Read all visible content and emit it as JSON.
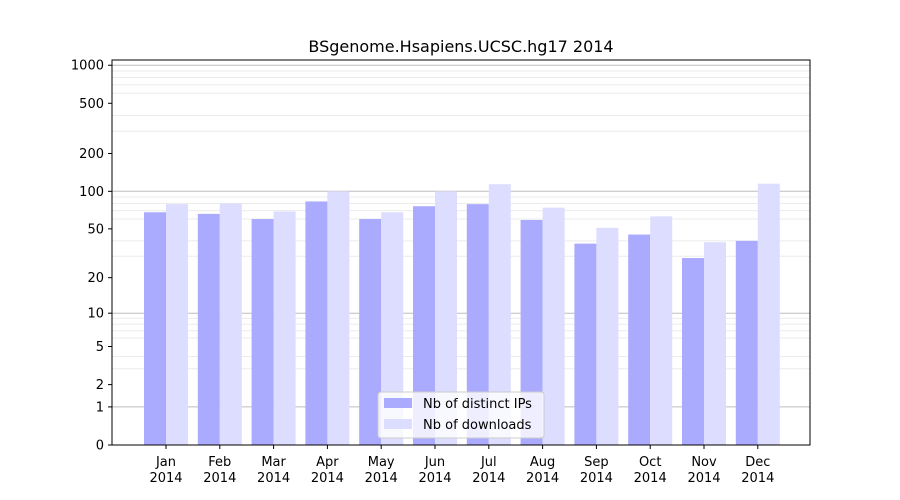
{
  "chart_data": {
    "type": "bar",
    "title": "BSgenome.Hsapiens.UCSC.hg17 2014",
    "xlabel": "",
    "ylabel": "",
    "yscale": "log(1+y)",
    "ylim": [
      0,
      1100
    ],
    "yticks": [
      0,
      1,
      2,
      5,
      10,
      20,
      50,
      100,
      200,
      500,
      1000
    ],
    "grid": true,
    "legend_position": "bottom-center",
    "categories": [
      [
        "Jan",
        "2014"
      ],
      [
        "Feb",
        "2014"
      ],
      [
        "Mar",
        "2014"
      ],
      [
        "Apr",
        "2014"
      ],
      [
        "May",
        "2014"
      ],
      [
        "Jun",
        "2014"
      ],
      [
        "Jul",
        "2014"
      ],
      [
        "Aug",
        "2014"
      ],
      [
        "Sep",
        "2014"
      ],
      [
        "Oct",
        "2014"
      ],
      [
        "Nov",
        "2014"
      ],
      [
        "Dec",
        "2014"
      ]
    ],
    "series": [
      {
        "name": "Nb of distinct IPs",
        "color": "#aaaaff",
        "values": [
          68,
          66,
          60,
          83,
          60,
          76,
          79,
          59,
          38,
          45,
          29,
          40
        ]
      },
      {
        "name": "Nb of downloads",
        "color": "#ddddff",
        "values": [
          79,
          80,
          69,
          100,
          68,
          100,
          114,
          74,
          51,
          63,
          39,
          115
        ]
      }
    ]
  }
}
